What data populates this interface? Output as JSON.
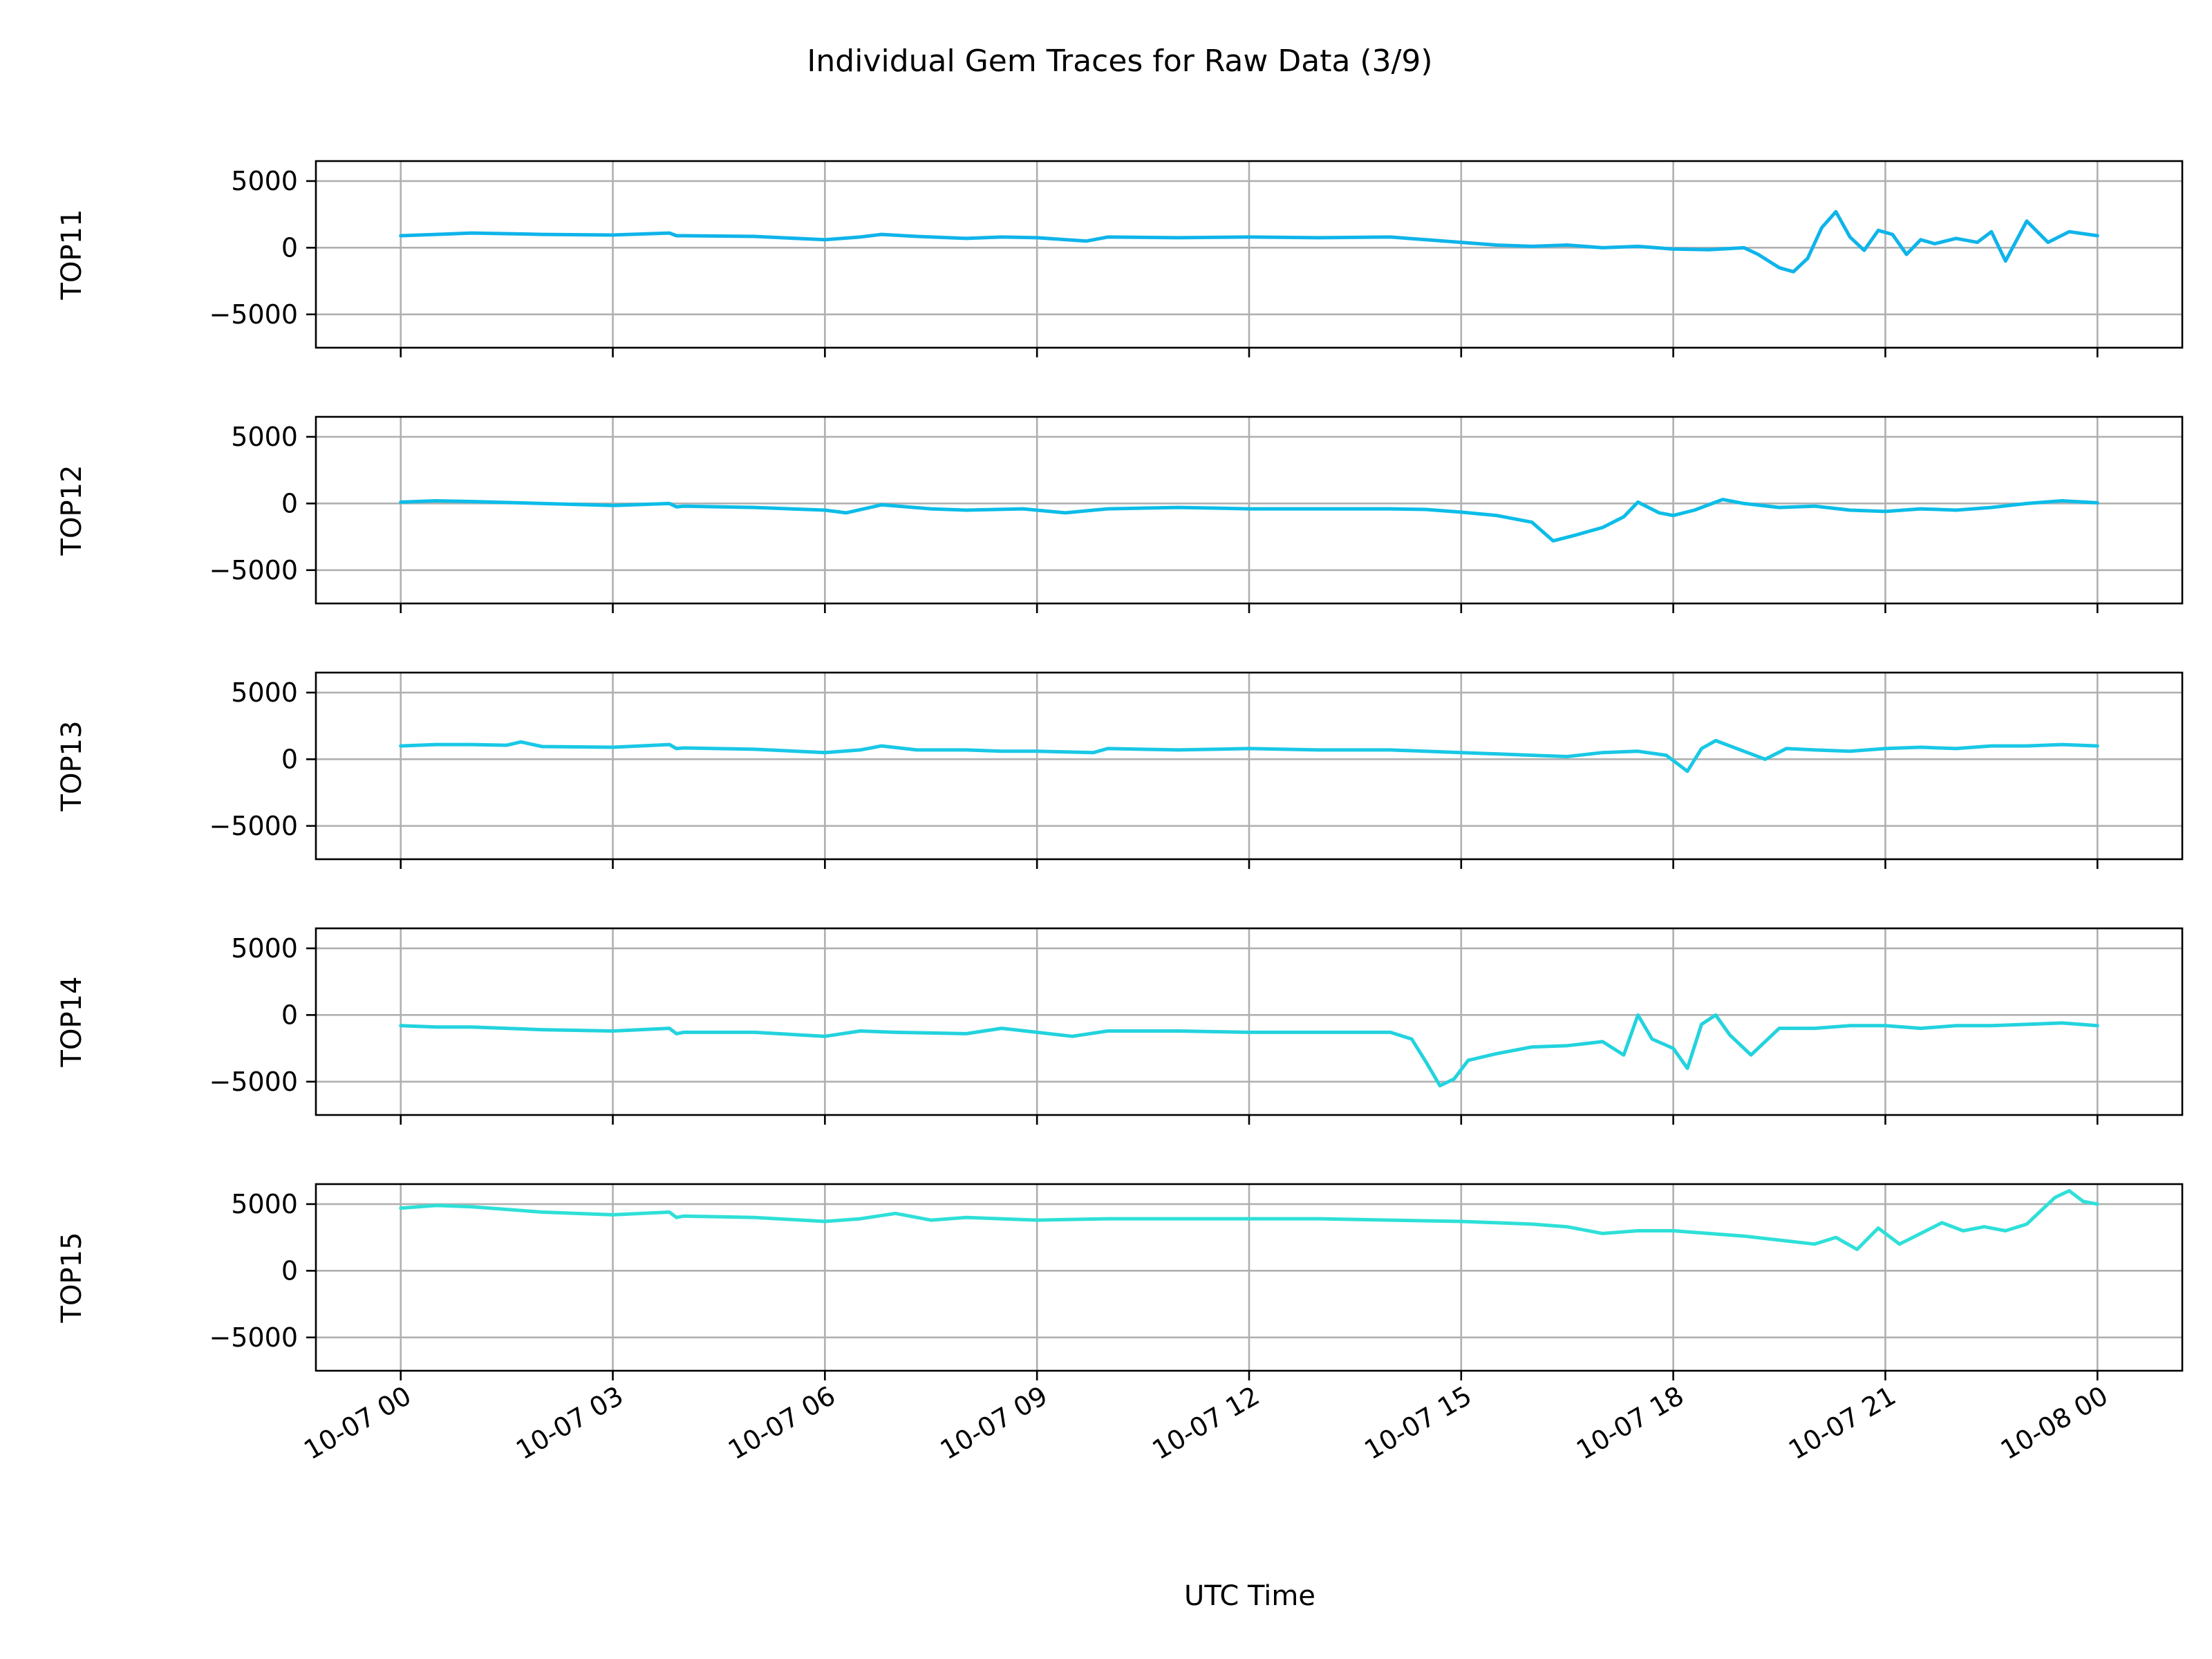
{
  "chart_data": {
    "type": "line",
    "title": "Individual Gem Traces for Raw Data (3/9)",
    "xlabel": "UTC Time",
    "x_ticks": [
      "10-07 00",
      "10-07 03",
      "10-07 06",
      "10-07 09",
      "10-07 12",
      "10-07 15",
      "10-07 18",
      "10-07 21",
      "10-08 00"
    ],
    "x_tick_hours": [
      0,
      3,
      6,
      9,
      12,
      15,
      18,
      21,
      24
    ],
    "xlim_hours": [
      -1.2,
      25.2
    ],
    "y_ticks": [
      5000,
      0,
      -5000
    ],
    "y_tick_labels": [
      "5000",
      "0",
      "−5000"
    ],
    "ylim": [
      -7500,
      6500
    ],
    "grid": true,
    "shared_x": true,
    "panels": [
      {
        "ylabel": "TOP11",
        "color": "#0fb4ea",
        "x_hours": [
          0,
          0.5,
          1,
          2,
          3,
          3.8,
          3.9,
          4,
          5,
          6,
          6.5,
          6.8,
          7.3,
          8,
          8.5,
          9,
          9.7,
          10,
          11,
          12,
          13,
          14,
          14.5,
          15,
          15.5,
          16,
          16.5,
          17,
          17.5,
          18,
          18.5,
          19,
          19.2,
          19.5,
          19.7,
          19.9,
          20.1,
          20.3,
          20.5,
          20.7,
          20.9,
          21.1,
          21.3,
          21.5,
          21.7,
          22,
          22.3,
          22.5,
          22.7,
          23,
          23.3,
          23.6,
          24
        ],
        "values": [
          900,
          1000,
          1100,
          1000,
          950,
          1100,
          900,
          900,
          850,
          600,
          800,
          1000,
          850,
          700,
          800,
          750,
          500,
          800,
          750,
          800,
          750,
          800,
          600,
          400,
          200,
          100,
          200,
          0,
          100,
          -100,
          -150,
          0,
          -500,
          -1500,
          -1800,
          -800,
          1500,
          2700,
          800,
          -200,
          1300,
          1000,
          -500,
          600,
          300,
          700,
          400,
          1200,
          -1000,
          2000,
          400,
          1200,
          900
        ]
      },
      {
        "ylabel": "TOP12",
        "color": "#0cbde8",
        "x_hours": [
          0,
          0.5,
          1,
          2,
          3,
          3.8,
          3.9,
          4,
          5,
          6,
          6.3,
          6.8,
          7.5,
          8,
          8.8,
          9.4,
          9.8,
          10,
          11,
          12,
          13,
          14,
          14.5,
          15,
          15.5,
          16,
          16.3,
          16.6,
          17,
          17.3,
          17.5,
          17.8,
          18,
          18.3,
          18.7,
          19,
          19.5,
          20,
          20.5,
          21,
          21.5,
          22,
          22.5,
          23,
          23.5,
          24
        ],
        "values": [
          100,
          200,
          150,
          0,
          -150,
          0,
          -250,
          -200,
          -300,
          -500,
          -700,
          -100,
          -400,
          -500,
          -400,
          -700,
          -500,
          -400,
          -300,
          -400,
          -400,
          -400,
          -450,
          -650,
          -900,
          -1400,
          -2800,
          -2400,
          -1800,
          -1000,
          100,
          -700,
          -900,
          -500,
          300,
          0,
          -300,
          -200,
          -500,
          -600,
          -400,
          -500,
          -300,
          0,
          200,
          50
        ]
      },
      {
        "ylabel": "TOP13",
        "color": "#19c8e6",
        "x_hours": [
          0,
          0.5,
          1,
          1.5,
          1.7,
          2,
          3,
          3.8,
          3.9,
          4,
          5,
          6,
          6.5,
          6.8,
          7.3,
          8,
          8.5,
          9,
          9.8,
          10,
          11,
          12,
          13,
          14,
          15,
          16,
          16.5,
          17,
          17.5,
          17.9,
          18.2,
          18.4,
          18.6,
          19,
          19.3,
          19.6,
          20,
          20.5,
          21,
          21.5,
          22,
          22.5,
          23,
          23.5,
          24
        ],
        "values": [
          1000,
          1100,
          1100,
          1050,
          1300,
          950,
          900,
          1100,
          800,
          850,
          750,
          500,
          700,
          1000,
          700,
          700,
          600,
          600,
          500,
          800,
          700,
          800,
          700,
          700,
          500,
          300,
          200,
          500,
          600,
          300,
          -900,
          800,
          1400,
          600,
          0,
          800,
          700,
          600,
          800,
          900,
          800,
          1000,
          1000,
          1100,
          1000
        ]
      },
      {
        "ylabel": "TOP14",
        "color": "#22d3de",
        "x_hours": [
          0,
          0.5,
          1,
          2,
          3,
          3.8,
          3.9,
          4,
          5,
          6,
          6.5,
          7,
          8,
          8.5,
          9,
          9.5,
          10,
          11,
          12,
          13,
          14,
          14.3,
          14.5,
          14.7,
          14.9,
          15.1,
          15.5,
          16,
          16.5,
          17,
          17.3,
          17.5,
          17.7,
          18,
          18.2,
          18.4,
          18.6,
          18.8,
          19.1,
          19.5,
          20,
          20.5,
          21,
          21.5,
          22,
          22.5,
          23,
          23.5,
          24
        ],
        "values": [
          -800,
          -900,
          -900,
          -1100,
          -1200,
          -1000,
          -1400,
          -1300,
          -1300,
          -1600,
          -1200,
          -1300,
          -1400,
          -1000,
          -1300,
          -1600,
          -1200,
          -1200,
          -1300,
          -1300,
          -1300,
          -1800,
          -3500,
          -5300,
          -4800,
          -3400,
          -2900,
          -2400,
          -2300,
          -2000,
          -3000,
          0,
          -1800,
          -2500,
          -4000,
          -700,
          0,
          -1500,
          -3000,
          -1000,
          -1000,
          -800,
          -800,
          -1000,
          -800,
          -800,
          -700,
          -600,
          -800
        ]
      },
      {
        "ylabel": "TOP15",
        "color": "#2ee0d8",
        "x_hours": [
          0,
          0.5,
          1,
          2,
          3,
          3.8,
          3.9,
          4,
          5,
          6,
          6.5,
          7,
          7.5,
          8,
          9,
          10,
          11,
          12,
          13,
          14,
          15,
          15.5,
          16,
          16.5,
          17,
          17.5,
          18,
          18.5,
          19,
          19.5,
          20,
          20.3,
          20.6,
          20.9,
          21.2,
          21.5,
          21.8,
          22.1,
          22.4,
          22.7,
          23,
          23.2,
          23.4,
          23.6,
          23.8,
          24
        ],
        "values": [
          4700,
          4900,
          4800,
          4400,
          4200,
          4400,
          4000,
          4100,
          4000,
          3700,
          3900,
          4300,
          3800,
          4000,
          3800,
          3900,
          3900,
          3900,
          3900,
          3800,
          3700,
          3600,
          3500,
          3300,
          2800,
          3000,
          3000,
          2800,
          2600,
          2300,
          2000,
          2500,
          1600,
          3200,
          2000,
          2800,
          3600,
          3000,
          3300,
          3000,
          3500,
          4500,
          5500,
          6000,
          5200,
          5000
        ]
      }
    ]
  }
}
